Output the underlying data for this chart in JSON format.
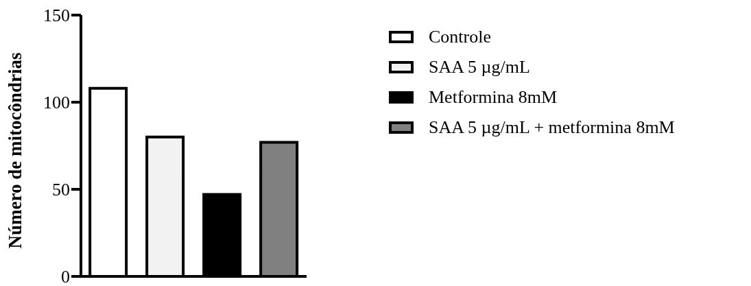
{
  "chart_data": {
    "type": "bar",
    "ylabel": "Número de mitocôndrias",
    "categories": [
      null
    ],
    "series": [
      {
        "name": "Controle",
        "color": "#ffffff",
        "values": [
          108
        ]
      },
      {
        "name": "SAA 5 µg/mL",
        "color": "#f2f2f2",
        "values": [
          80
        ]
      },
      {
        "name": "Metformina 8mM",
        "color": "#000000",
        "values": [
          47
        ]
      },
      {
        "name": "SAA 5 µg/mL + metformina 8mM",
        "color": "#808080",
        "values": [
          77
        ]
      }
    ],
    "ylim": [
      0,
      150
    ],
    "yticks": [
      0,
      50,
      100,
      150
    ],
    "grid": false,
    "legend": "right",
    "tick_labels": "y"
  }
}
